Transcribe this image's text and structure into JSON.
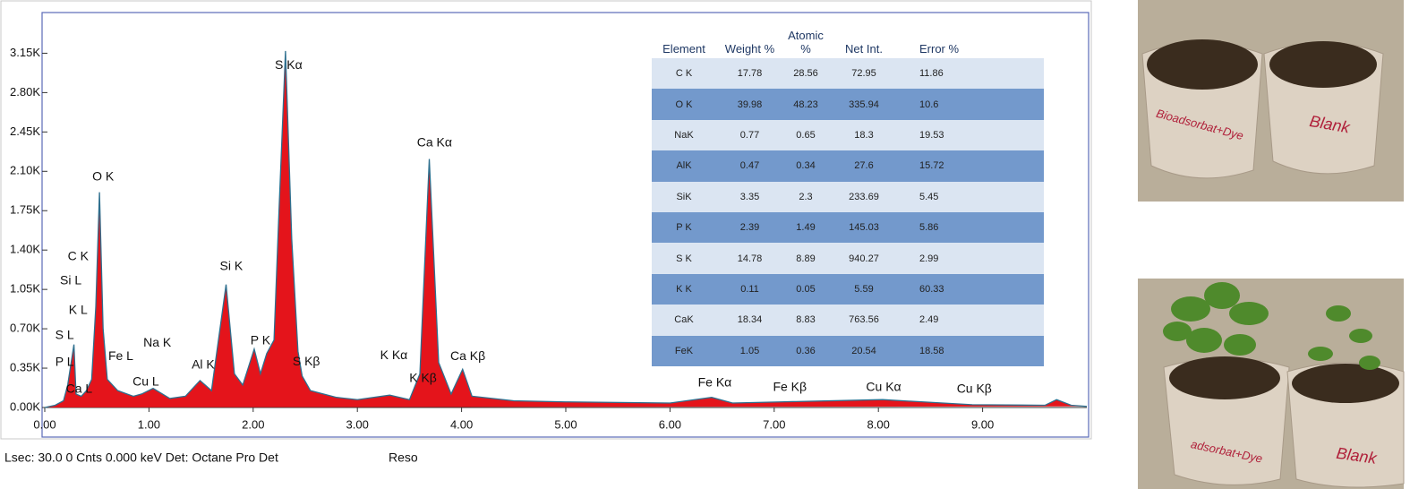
{
  "chart_data": {
    "type": "area",
    "x": [
      0,
      0.1,
      0.18,
      0.22,
      0.28,
      0.3,
      0.35,
      0.4,
      0.45,
      0.49,
      0.525,
      0.56,
      0.6,
      0.7,
      0.85,
      0.93,
      1.04,
      1.2,
      1.35,
      1.49,
      1.6,
      1.74,
      1.82,
      1.9,
      2.01,
      2.07,
      2.13,
      2.2,
      2.25,
      2.31,
      2.37,
      2.43,
      2.47,
      2.55,
      2.8,
      3.0,
      3.31,
      3.5,
      3.6,
      3.69,
      3.78,
      3.9,
      4.01,
      4.1,
      4.5,
      5.0,
      6.0,
      6.4,
      6.6,
      7.06,
      8.04,
      8.9,
      9.6,
      9.71,
      9.85,
      10
    ],
    "series": [
      {
        "color": "#e4141b",
        "edge_color": "#2e6f8e",
        "values": [
          0,
          20,
          60,
          200,
          560,
          120,
          100,
          150,
          250,
          900,
          1914,
          700,
          250,
          150,
          100,
          120,
          170,
          80,
          100,
          240,
          150,
          1093,
          300,
          200,
          520,
          300,
          480,
          600,
          1800,
          3170,
          1500,
          500,
          280,
          150,
          90,
          70,
          110,
          70,
          300,
          2210,
          400,
          120,
          340,
          100,
          60,
          50,
          40,
          90,
          40,
          50,
          70,
          25,
          20,
          70,
          20,
          10
        ]
      }
    ],
    "xlim": [
      0,
      10
    ],
    "ylim": [
      0,
      3480
    ],
    "xticks": [
      {
        "value": 0,
        "label": "0.00"
      },
      {
        "value": 1,
        "label": "1.00"
      },
      {
        "value": 2,
        "label": "2.00"
      },
      {
        "value": 3,
        "label": "3.00"
      },
      {
        "value": 4,
        "label": "4.00"
      },
      {
        "value": 5,
        "label": "5.00"
      },
      {
        "value": 6,
        "label": "6.00"
      },
      {
        "value": 7,
        "label": "7.00"
      },
      {
        "value": 8,
        "label": "8.00"
      },
      {
        "value": 9,
        "label": "9.00"
      }
    ],
    "yticks": [
      {
        "value": 0,
        "label": "0.00K"
      },
      {
        "value": 350,
        "label": "0.35K"
      },
      {
        "value": 700,
        "label": "0.70K"
      },
      {
        "value": 1050,
        "label": "1.05K"
      },
      {
        "value": 1400,
        "label": "1.40K"
      },
      {
        "value": 1750,
        "label": "1.75K"
      },
      {
        "value": 2100,
        "label": "2.10K"
      },
      {
        "value": 2450,
        "label": "2.45K"
      },
      {
        "value": 2800,
        "label": "2.80K"
      },
      {
        "value": 3150,
        "label": "3.15K"
      }
    ],
    "annotations": [
      {
        "text": "S  Kα",
        "x": 2.34,
        "y": 3040
      },
      {
        "text": "Ca Kα",
        "x": 3.74,
        "y": 2350
      },
      {
        "text": "O  K",
        "x": 0.56,
        "y": 2050
      },
      {
        "text": "C  K",
        "x": 0.32,
        "y": 1340
      },
      {
        "text": "Si L",
        "x": 0.25,
        "y": 1125
      },
      {
        "text": "K  L",
        "x": 0.32,
        "y": 860
      },
      {
        "text": "S  L",
        "x": 0.19,
        "y": 640
      },
      {
        "text": "P  L",
        "x": 0.19,
        "y": 400
      },
      {
        "text": "Ca L",
        "x": 0.33,
        "y": 160
      },
      {
        "text": "Fe L",
        "x": 0.73,
        "y": 450
      },
      {
        "text": "Na K",
        "x": 1.08,
        "y": 570
      },
      {
        "text": "Cu L",
        "x": 0.97,
        "y": 225
      },
      {
        "text": "Al K",
        "x": 1.52,
        "y": 375
      },
      {
        "text": "Si K",
        "x": 1.79,
        "y": 1250
      },
      {
        "text": "P  K",
        "x": 2.07,
        "y": 590
      },
      {
        "text": "S  Kβ",
        "x": 2.51,
        "y": 405
      },
      {
        "text": "K  Kα",
        "x": 3.35,
        "y": 460
      },
      {
        "text": "K  Kβ",
        "x": 3.63,
        "y": 255
      },
      {
        "text": "Ca Kβ",
        "x": 4.06,
        "y": 450
      },
      {
        "text": "Fe Kα",
        "x": 6.43,
        "y": 215
      },
      {
        "text": "Fe Kβ",
        "x": 7.15,
        "y": 175
      },
      {
        "text": "Cu Kα",
        "x": 8.05,
        "y": 175
      },
      {
        "text": "Cu Kβ",
        "x": 8.92,
        "y": 160
      }
    ]
  },
  "table": {
    "columns": [
      "Element",
      "Weight %",
      "Atomic %",
      "Net Int.",
      "Error %"
    ],
    "rows": [
      [
        "C K",
        "17.78",
        "28.56",
        "72.95",
        "11.86"
      ],
      [
        "O K",
        "39.98",
        "48.23",
        "335.94",
        "10.6"
      ],
      [
        "NaK",
        "0.77",
        "0.65",
        "18.3",
        "19.53"
      ],
      [
        "AlK",
        "0.47",
        "0.34",
        "27.6",
        "15.72"
      ],
      [
        "SiK",
        "3.35",
        "2.3",
        "233.69",
        "5.45"
      ],
      [
        "P K",
        "2.39",
        "1.49",
        "145.03",
        "5.86"
      ],
      [
        "S K",
        "14.78",
        "8.89",
        "940.27",
        "2.99"
      ],
      [
        "K K",
        "0.11",
        "0.05",
        "5.59",
        "60.33"
      ],
      [
        "CaK",
        "18.34",
        "8.83",
        "763.56",
        "2.49"
      ],
      [
        "FeK",
        "1.05",
        "0.36",
        "20.54",
        "18.58"
      ]
    ]
  },
  "footer": {
    "status": "Lsec: 30.0 0 Cnts  0.000 keV Det: Octane Pro Det",
    "reso": "Reso"
  },
  "photos": [
    {
      "pot_labels": [
        "Bioadsorbat+Dye",
        "Blank"
      ]
    },
    {
      "pot_labels": [
        "adsorbat+Dye",
        "Blank"
      ]
    }
  ]
}
